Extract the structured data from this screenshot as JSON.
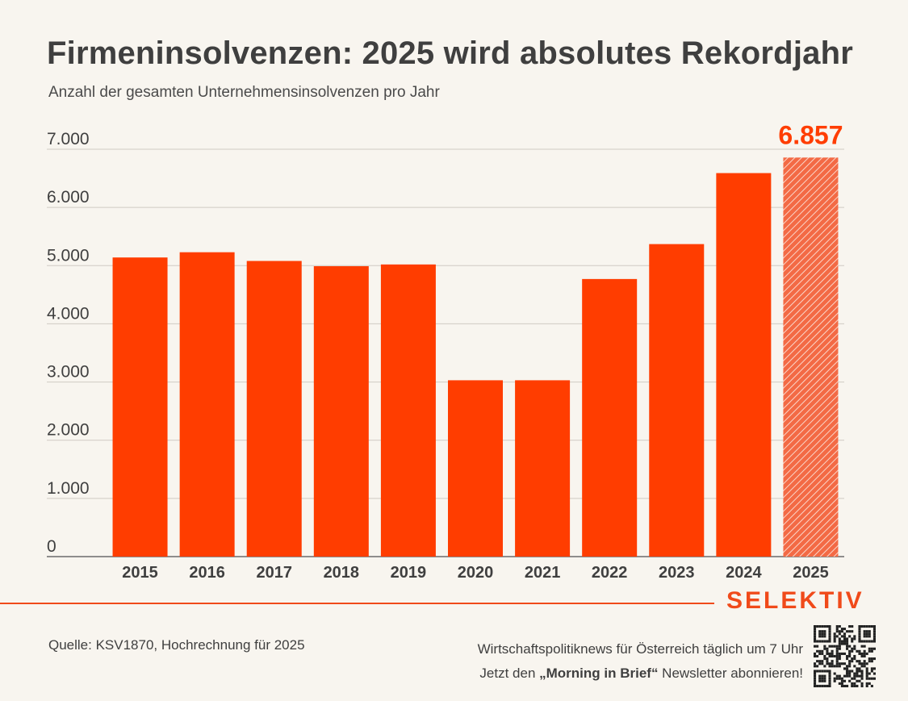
{
  "header": {
    "title": "Firmeninsolvenzen: 2025 wird absolutes Rekordjahr",
    "subtitle": "Anzahl der gesamten Unternehmensinsolvenzen pro Jahr"
  },
  "chart_data": {
    "type": "bar",
    "title": "Firmeninsolvenzen: 2025 wird absolutes Rekordjahr",
    "subtitle": "Anzahl der gesamten Unternehmensinsolvenzen pro Jahr",
    "xlabel": "",
    "ylabel": "",
    "categories": [
      "2015",
      "2016",
      "2017",
      "2018",
      "2019",
      "2020",
      "2021",
      "2022",
      "2023",
      "2024",
      "2025"
    ],
    "values": [
      5140,
      5230,
      5080,
      4990,
      5020,
      3030,
      3030,
      4770,
      5370,
      6590,
      6857
    ],
    "projected": [
      false,
      false,
      false,
      false,
      false,
      false,
      false,
      false,
      false,
      false,
      true
    ],
    "highlight_label": "6.857",
    "ylim": [
      0,
      7000
    ],
    "yticks": [
      0,
      1000,
      2000,
      3000,
      4000,
      5000,
      6000,
      7000
    ],
    "ytick_labels": [
      "0",
      "1.000",
      "2.000",
      "3.000",
      "4.000",
      "5.000",
      "6.000",
      "7.000"
    ],
    "grid": true,
    "colors": {
      "bar": "#ff3d00",
      "projected": "#f36a45",
      "label": "#ff3d00",
      "grid": "#cfcac3",
      "axis": "#6b6b6b",
      "text": "#3f3f3f"
    }
  },
  "footer": {
    "brand": "SELEKTIV",
    "source": "Quelle: KSV1870, Hochrechnung für 2025",
    "promo_line1": "Wirtschaftspolitiknews für Österreich täglich um 7 Uhr",
    "promo_line2_pre": "Jetzt den ",
    "promo_line2_bold": "„Morning in Brief“",
    "promo_line2_post": " Newsletter abonnieren!",
    "qr_icon": "qr-code-icon"
  },
  "colors": {
    "accent": "#f04a1a",
    "background": "#f8f5ef"
  }
}
